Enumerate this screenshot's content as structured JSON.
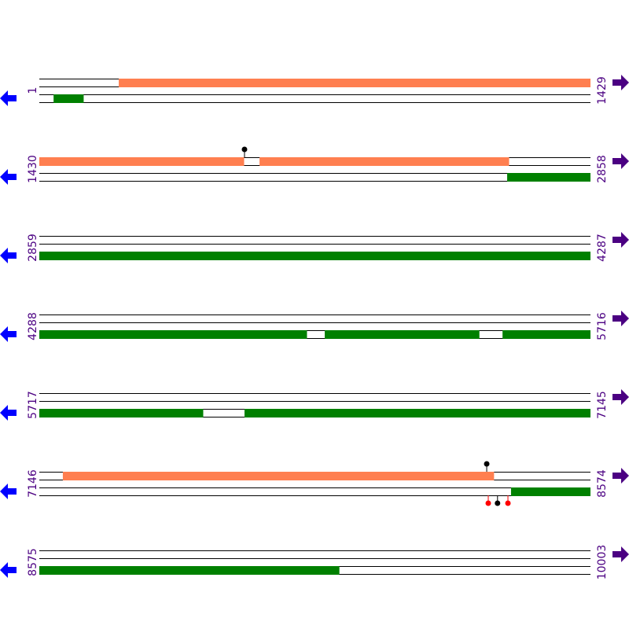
{
  "colors": {
    "forward_feature": "#ff7f50",
    "reverse_feature": "#008000",
    "left_arrow": "#0000ff",
    "right_arrow": "#4b0082",
    "label": "#4b0082",
    "pin_black": "#000000",
    "pin_red": "#ff0000"
  },
  "icons": {
    "left": "arrow-left-icon",
    "right": "arrow-right-icon"
  },
  "rows": [
    {
      "start": "1",
      "end": "1429",
      "s": 1,
      "e": 1429,
      "top": [
        [
          207,
          1429
        ]
      ],
      "bottom": [
        [
          38,
          115
        ]
      ],
      "top_pins": [],
      "bottom_pins": []
    },
    {
      "start": "1430",
      "end": "2858",
      "s": 1430,
      "e": 2858,
      "top": [
        [
          1430,
          1960
        ],
        [
          2001,
          2647
        ]
      ],
      "bottom": [
        [
          2643,
          2858
        ]
      ],
      "top_pins": [
        {
          "pos": 1962,
          "color": "black"
        }
      ],
      "bottom_pins": []
    },
    {
      "start": "2859",
      "end": "4287",
      "s": 2859,
      "e": 4287,
      "top": [],
      "bottom": [
        [
          2859,
          4287
        ]
      ],
      "top_pins": [],
      "bottom_pins": []
    },
    {
      "start": "4288",
      "end": "5716",
      "s": 4288,
      "e": 5716,
      "top": [],
      "bottom": [
        [
          4288,
          4981
        ],
        [
          5028,
          5428
        ],
        [
          5489,
          5716
        ]
      ],
      "top_pins": [],
      "bottom_pins": []
    },
    {
      "start": "5717",
      "end": "7145",
      "s": 5717,
      "e": 7145,
      "top": [],
      "bottom": [
        [
          5717,
          6141
        ],
        [
          6249,
          7145
        ]
      ],
      "top_pins": [],
      "bottom_pins": []
    },
    {
      "start": "7146",
      "end": "8574",
      "s": 7146,
      "e": 8574,
      "top": [
        [
          7207,
          8324
        ]
      ],
      "bottom": [
        [
          8369,
          8574
        ]
      ],
      "top_pins": [
        {
          "pos": 8306,
          "color": "black"
        }
      ],
      "bottom_pins": [
        {
          "pos": 8310,
          "color": "red"
        },
        {
          "pos": 8334,
          "color": "black"
        },
        {
          "pos": 8361,
          "color": "red"
        }
      ]
    },
    {
      "start": "8575",
      "end": "10003",
      "s": 8575,
      "e": 10003,
      "top": [],
      "bottom": [
        [
          8575,
          9352
        ]
      ],
      "top_pins": [],
      "bottom_pins": []
    }
  ]
}
